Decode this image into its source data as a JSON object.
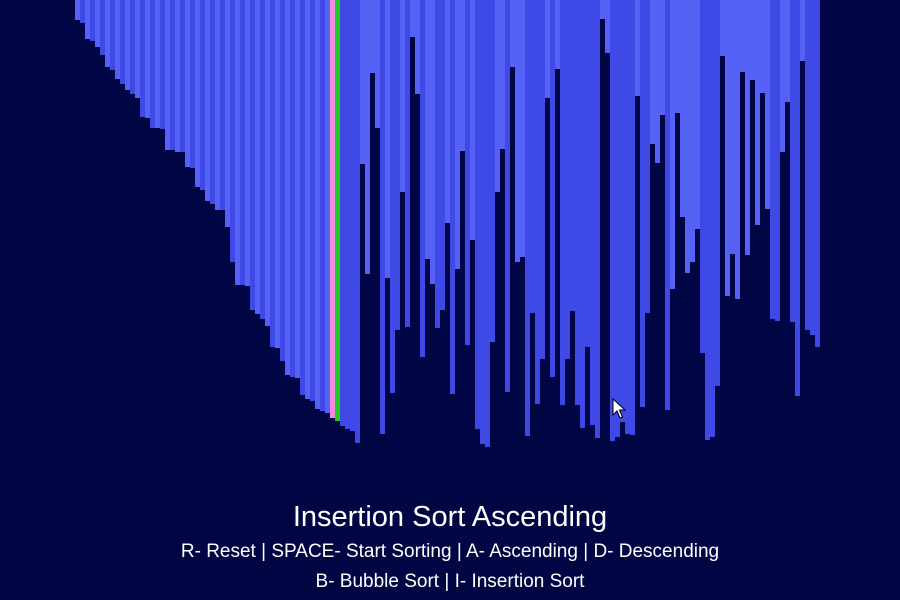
{
  "app": {
    "title": "Insertion Sort Ascending",
    "help_line_1": "R- Reset | SPACE- Start Sorting | A- Ascending | D- Descending",
    "help_line_2": "B- Bubble Sort | I- Insertion Sort"
  },
  "colors": {
    "background": "#000544",
    "bar_light": "#5662f6",
    "bar_dark": "#3f4ae6",
    "bar_compare": "#f08cd8",
    "bar_current": "#22cc22"
  },
  "visualizer": {
    "sorted_count": 52,
    "compare_index": 51,
    "current_index": 52,
    "values": [
      20,
      23,
      39,
      41,
      47,
      55,
      67,
      70,
      79,
      84,
      90,
      94,
      98,
      117,
      118,
      128,
      128,
      129,
      150,
      150,
      152,
      152,
      167,
      168,
      187,
      190,
      201,
      204,
      210,
      210,
      227,
      262,
      285,
      285,
      286,
      310,
      314,
      319,
      326,
      347,
      348,
      361,
      375,
      377,
      378,
      395,
      399,
      401,
      409,
      411,
      413,
      418,
      421,
      426,
      429,
      431,
      443,
      164,
      274,
      73,
      128,
      434,
      278,
      393,
      330,
      192,
      327,
      37,
      94,
      357,
      259,
      284,
      328,
      310,
      223,
      394,
      269,
      151,
      345,
      240,
      429,
      444,
      447,
      342,
      192,
      149,
      392,
      67,
      262,
      257,
      436,
      313,
      404,
      359,
      98,
      377,
      69,
      405,
      359,
      311,
      405,
      428,
      347,
      425,
      438,
      19,
      53,
      441,
      437,
      422,
      434,
      435,
      96,
      407,
      313,
      144,
      163,
      115,
      410,
      289,
      113,
      217,
      273,
      262,
      229,
      353,
      440,
      437,
      386,
      56,
      296,
      254,
      299,
      72,
      255,
      80,
      225,
      93,
      209,
      319,
      321,
      152,
      102,
      322,
      396,
      61,
      330,
      335,
      347
    ]
  }
}
